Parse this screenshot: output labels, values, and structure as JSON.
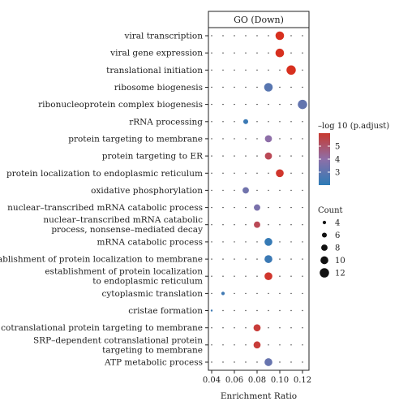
{
  "chart_data": {
    "type": "scatter",
    "title": "GO (Down)",
    "xlabel": "Enrichment Ratio",
    "ylabel": "",
    "xlim": [
      0.04,
      0.12
    ],
    "xticks": [
      "0.04",
      "0.06",
      "0.08",
      "0.10",
      "0.12"
    ],
    "xtick_values": [
      0.04,
      0.06,
      0.08,
      0.1,
      0.12
    ],
    "grid": "dotted",
    "color_scale": {
      "min": 2,
      "max": 6,
      "low": "#2c7bb6",
      "mid": "#8e6fa8",
      "high": "#d7301f"
    },
    "size_scale": {
      "min": 2,
      "max": 13
    },
    "terms": [
      {
        "label": [
          "viral transcription"
        ],
        "x": 0.1,
        "count": 11,
        "neglog10_padj": 6.0
      },
      {
        "label": [
          "viral gene expression"
        ],
        "x": 0.1,
        "count": 11,
        "neglog10_padj": 6.0
      },
      {
        "label": [
          "translational initiation"
        ],
        "x": 0.11,
        "count": 12,
        "neglog10_padj": 6.0
      },
      {
        "label": [
          "ribosome biogenesis"
        ],
        "x": 0.09,
        "count": 11,
        "neglog10_padj": 2.9
      },
      {
        "label": [
          "ribonucleoprotein complex biogenesis"
        ],
        "x": 0.12,
        "count": 12,
        "neglog10_padj": 3.1
      },
      {
        "label": [
          "rRNA processing"
        ],
        "x": 0.07,
        "count": 6,
        "neglog10_padj": 2.3
      },
      {
        "label": [
          "protein targeting to membrane"
        ],
        "x": 0.09,
        "count": 9,
        "neglog10_padj": 4.0
      },
      {
        "label": [
          "protein targeting to ER"
        ],
        "x": 0.09,
        "count": 9,
        "neglog10_padj": 5.2
      },
      {
        "label": [
          "protein localization to endoplasmic reticulum"
        ],
        "x": 0.1,
        "count": 10,
        "neglog10_padj": 5.8
      },
      {
        "label": [
          "oxidative phosphorylation"
        ],
        "x": 0.07,
        "count": 8,
        "neglog10_padj": 3.4
      },
      {
        "label": [
          "nuclear–transcribed mRNA catabolic process"
        ],
        "x": 0.08,
        "count": 8,
        "neglog10_padj": 3.6
      },
      {
        "label": [
          "nuclear–transcribed mRNA catabolic",
          "process, nonsense–mediated decay"
        ],
        "x": 0.08,
        "count": 8,
        "neglog10_padj": 5.2
      },
      {
        "label": [
          "mRNA catabolic process"
        ],
        "x": 0.09,
        "count": 10,
        "neglog10_padj": 2.2
      },
      {
        "label": [
          "establishment of protein localization to membrane"
        ],
        "x": 0.09,
        "count": 10,
        "neglog10_padj": 2.3
      },
      {
        "label": [
          "establishment of protein localization",
          "to endoplasmic reticulum"
        ],
        "x": 0.09,
        "count": 10,
        "neglog10_padj": 5.8
      },
      {
        "label": [
          "cytoplasmic translation"
        ],
        "x": 0.05,
        "count": 4,
        "neglog10_padj": 2.4
      },
      {
        "label": [
          "cristae formation"
        ],
        "x": 0.04,
        "count": 2,
        "neglog10_padj": 2.3
      },
      {
        "label": [
          "cotranslational protein targeting to membrane"
        ],
        "x": 0.08,
        "count": 9,
        "neglog10_padj": 5.6
      },
      {
        "label": [
          "SRP–dependent cotranslational protein",
          "targeting to membrane"
        ],
        "x": 0.08,
        "count": 9,
        "neglog10_padj": 5.6
      },
      {
        "label": [
          "ATP metabolic process"
        ],
        "x": 0.09,
        "count": 10,
        "neglog10_padj": 3.2
      }
    ],
    "legend_color": {
      "title": "–log 10 (p.adjust)",
      "ticks": [
        "5",
        "4",
        "3"
      ],
      "tick_values": [
        5,
        4,
        3
      ]
    },
    "legend_size": {
      "title": "Count",
      "labels": [
        "4",
        "6",
        "8",
        "10",
        "12"
      ],
      "values": [
        4,
        6,
        8,
        10,
        12
      ]
    }
  }
}
